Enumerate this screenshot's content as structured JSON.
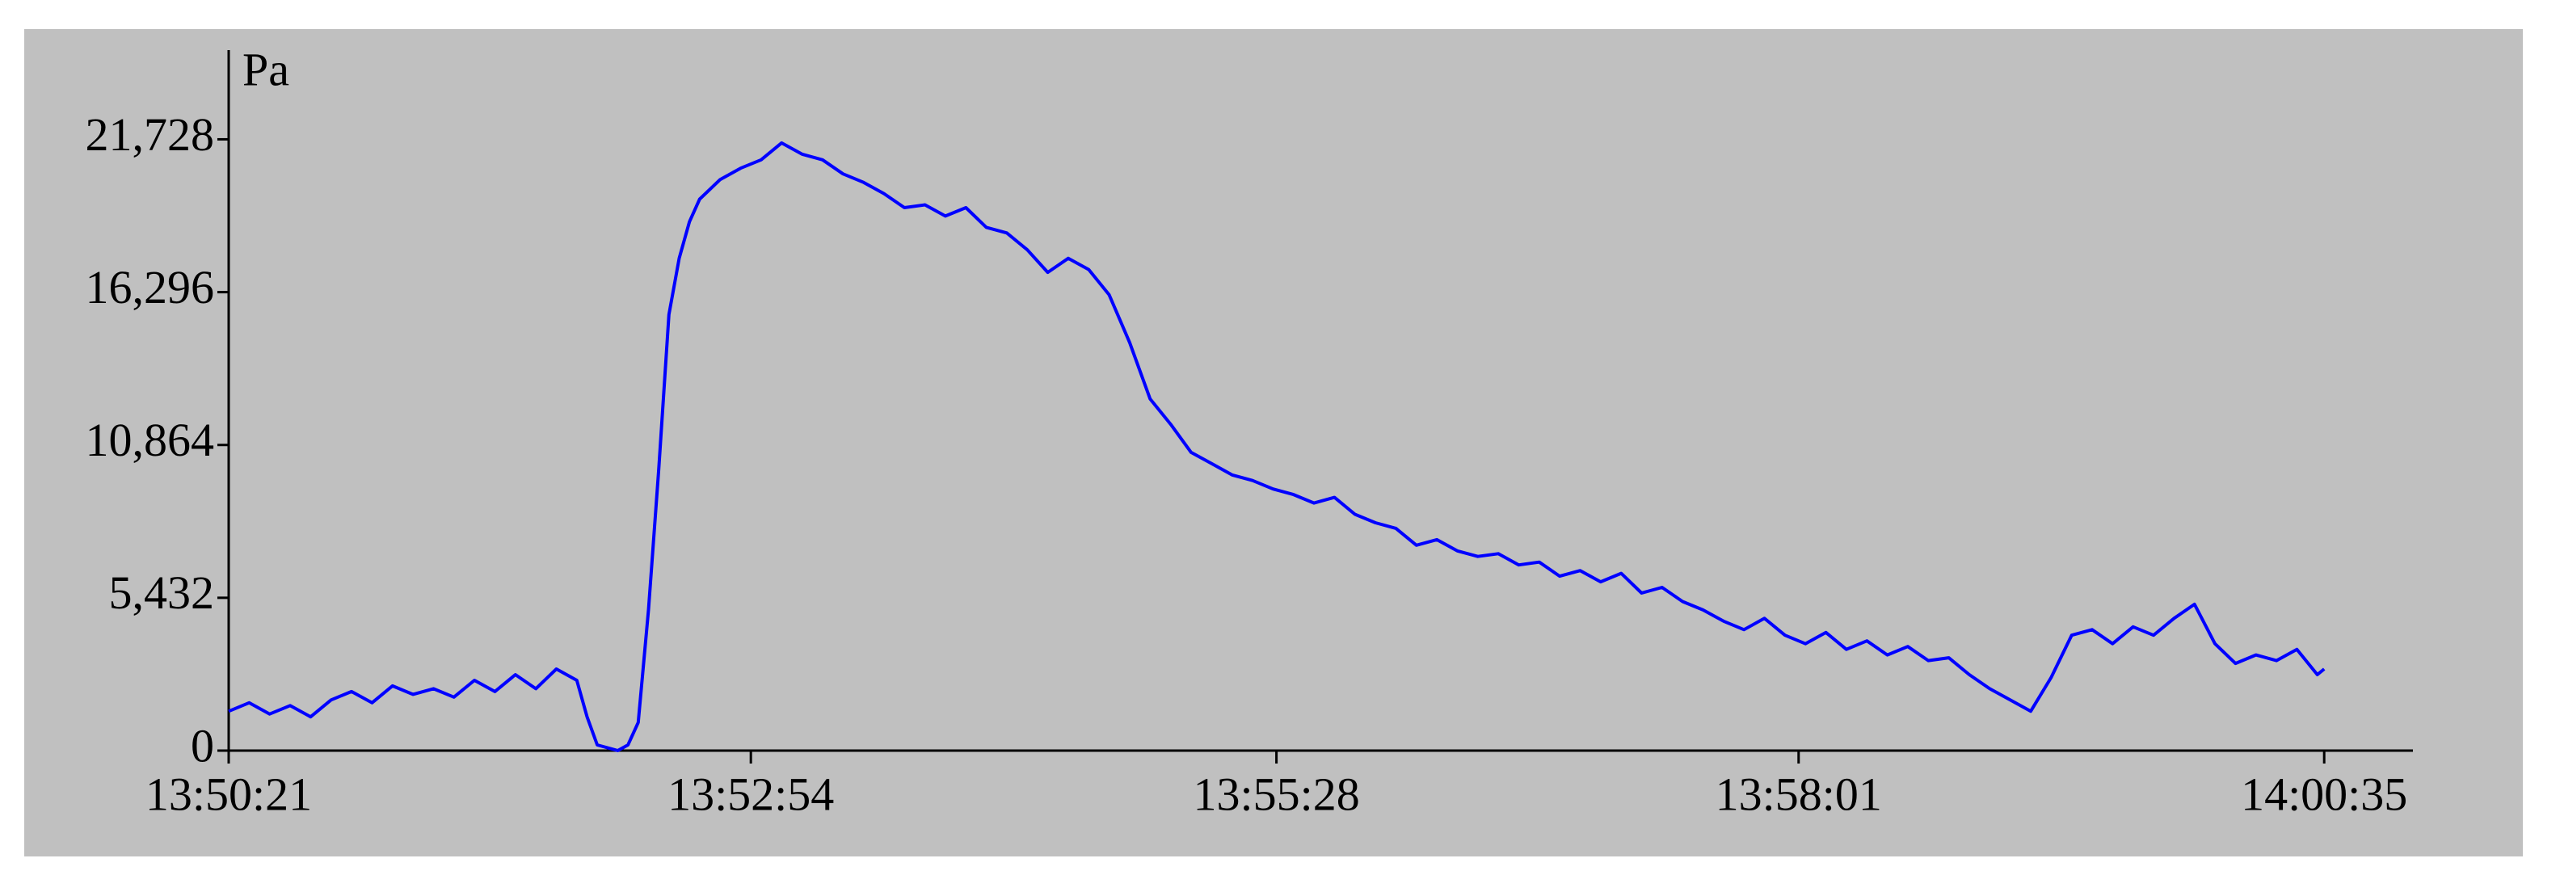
{
  "chart_data": {
    "type": "line",
    "y_label": "Pa",
    "xlim": [
      "13:50:21",
      "14:01:01"
    ],
    "xticks": [
      "13:50:21",
      "13:52:54",
      "13:55:28",
      "13:58:01",
      "14:00:35"
    ],
    "ylim": [
      0,
      24900
    ],
    "yticks": [
      0,
      {
        "value": 5432,
        "label": "5,432"
      },
      {
        "value": 10864,
        "label": "10,864"
      },
      {
        "value": 16296,
        "label": "16,296"
      },
      {
        "value": 21728,
        "label": "21,728"
      }
    ],
    "x": [
      "13:50:21",
      "13:50:27",
      "13:50:33",
      "13:50:39",
      "13:50:45",
      "13:50:51",
      "13:50:57",
      "13:51:03",
      "13:51:09",
      "13:51:15",
      "13:51:21",
      "13:51:27",
      "13:51:33",
      "13:51:39",
      "13:51:45",
      "13:51:51",
      "13:51:57",
      "13:52:03",
      "13:52:06",
      "13:52:09",
      "13:52:15",
      "13:52:18",
      "13:52:21",
      "13:52:24",
      "13:52:27",
      "13:52:30",
      "13:52:33",
      "13:52:36",
      "13:52:39",
      "13:52:45",
      "13:52:51",
      "13:52:57",
      "13:53:03",
      "13:53:09",
      "13:53:15",
      "13:53:21",
      "13:53:27",
      "13:53:33",
      "13:53:39",
      "13:53:45",
      "13:53:51",
      "13:53:57",
      "13:54:03",
      "13:54:09",
      "13:54:15",
      "13:54:21",
      "13:54:27",
      "13:54:33",
      "13:54:39",
      "13:54:45",
      "13:54:51",
      "13:54:57",
      "13:55:03",
      "13:55:09",
      "13:55:15",
      "13:55:21",
      "13:55:27",
      "13:55:33",
      "13:55:39",
      "13:55:45",
      "13:55:51",
      "13:55:57",
      "13:56:03",
      "13:56:09",
      "13:56:15",
      "13:56:21",
      "13:56:27",
      "13:56:33",
      "13:56:39",
      "13:56:45",
      "13:56:51",
      "13:56:57",
      "13:57:03",
      "13:57:09",
      "13:57:15",
      "13:57:21",
      "13:57:27",
      "13:57:33",
      "13:57:39",
      "13:57:45",
      "13:57:51",
      "13:57:57",
      "13:58:03",
      "13:58:09",
      "13:58:15",
      "13:58:21",
      "13:58:27",
      "13:58:33",
      "13:58:39",
      "13:58:45",
      "13:58:51",
      "13:58:57",
      "13:59:03",
      "13:59:09",
      "13:59:15",
      "13:59:21",
      "13:59:27",
      "13:59:33",
      "13:59:39",
      "13:59:45",
      "13:59:51",
      "13:59:57",
      "14:00:03",
      "14:00:09",
      "14:00:15",
      "14:00:21",
      "14:00:27",
      "14:00:33",
      "14:00:35"
    ],
    "series": [
      {
        "color": "#0000ff",
        "values": [
          1400,
          1700,
          1300,
          1600,
          1200,
          1800,
          2100,
          1700,
          2300,
          2000,
          2200,
          1900,
          2500,
          2100,
          2700,
          2200,
          2900,
          2500,
          1200,
          200,
          0,
          200,
          1000,
          5000,
          10000,
          15500,
          17500,
          18800,
          19600,
          20300,
          20700,
          21000,
          21600,
          21200,
          21000,
          20500,
          20200,
          19800,
          19300,
          19400,
          19000,
          19300,
          18600,
          18400,
          17800,
          17000,
          17500,
          17100,
          16200,
          14500,
          12500,
          11600,
          10600,
          10200,
          9800,
          9600,
          9300,
          9100,
          8800,
          9000,
          8400,
          8100,
          7900,
          7300,
          7500,
          7100,
          6900,
          7000,
          6600,
          6700,
          6200,
          6400,
          6000,
          6300,
          5600,
          5800,
          5300,
          5000,
          4600,
          4300,
          4700,
          4100,
          3800,
          4200,
          3600,
          3900,
          3400,
          3700,
          3200,
          3300,
          2700,
          2200,
          1800,
          1400,
          2600,
          4100,
          4300,
          3800,
          4400,
          4100,
          4700,
          5200,
          3800,
          3100,
          3400,
          3200,
          3600,
          2700,
          2900
        ]
      }
    ]
  }
}
